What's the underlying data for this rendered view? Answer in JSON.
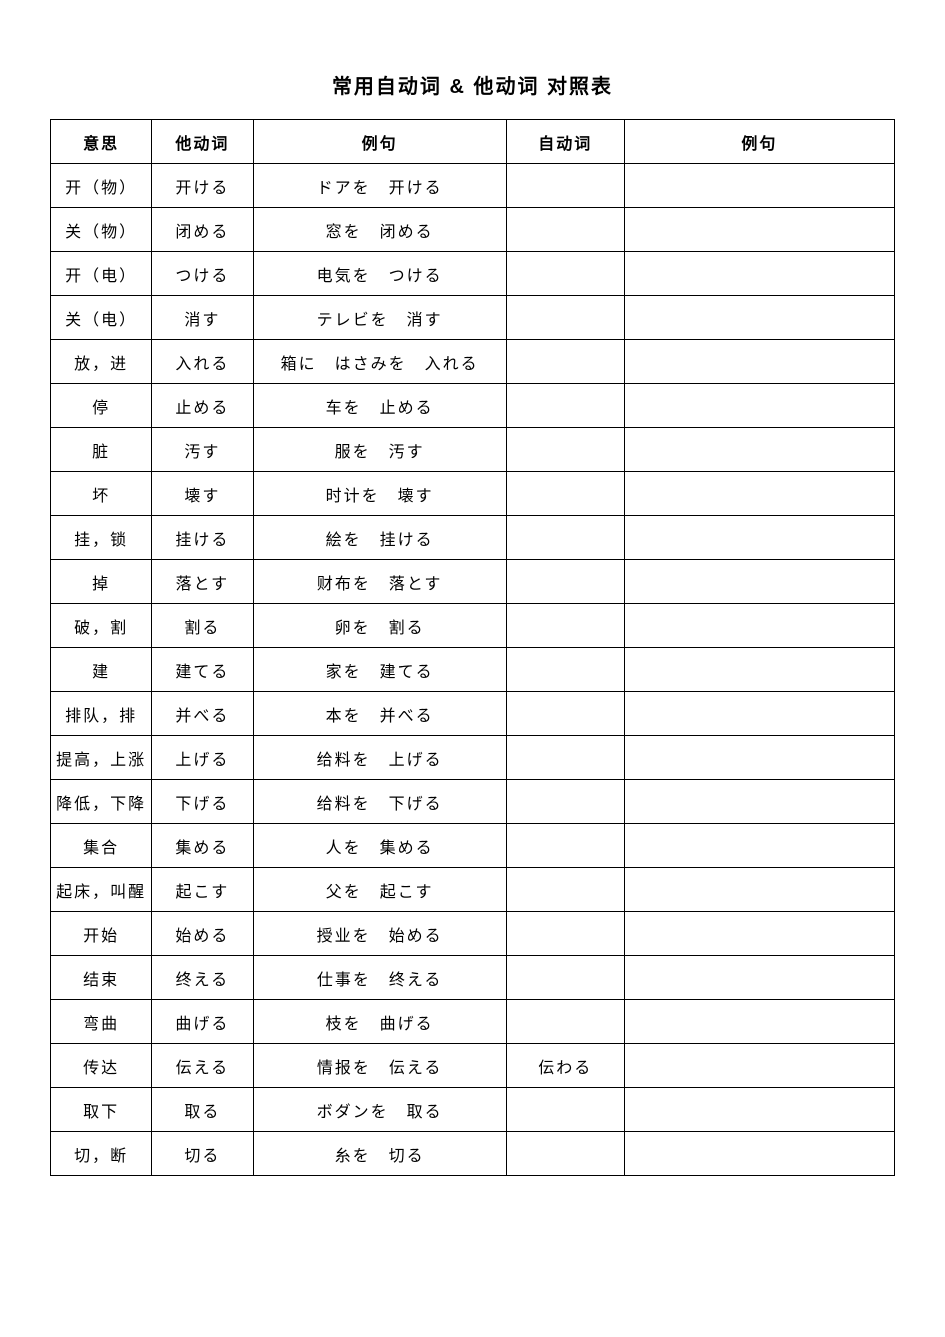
{
  "title": "常用自动词 & 他动词 对照表",
  "columns": [
    "意思",
    "他动词",
    "例句",
    "自动词",
    "例句"
  ],
  "rows": [
    {
      "meaning": "开（物）",
      "tadoshi": "开ける",
      "ex1": "ドアを　开ける",
      "jidoshi": "",
      "ex2": ""
    },
    {
      "meaning": "关（物）",
      "tadoshi": "闭める",
      "ex1": "窓を　闭める",
      "jidoshi": "",
      "ex2": ""
    },
    {
      "meaning": "开（电）",
      "tadoshi": "つける",
      "ex1": "电気を　つける",
      "jidoshi": "",
      "ex2": ""
    },
    {
      "meaning": "关（电）",
      "tadoshi": "消す",
      "ex1": "テレビを　消す",
      "jidoshi": "",
      "ex2": ""
    },
    {
      "meaning": "放，进",
      "tadoshi": "入れる",
      "ex1": "箱に　はさみを　入れる",
      "jidoshi": "",
      "ex2": ""
    },
    {
      "meaning": "停",
      "tadoshi": "止める",
      "ex1": "车を　止める",
      "jidoshi": "",
      "ex2": ""
    },
    {
      "meaning": "脏",
      "tadoshi": "汚す",
      "ex1": "服を　汚す",
      "jidoshi": "",
      "ex2": ""
    },
    {
      "meaning": "坏",
      "tadoshi": "壊す",
      "ex1": "时计を　壊す",
      "jidoshi": "",
      "ex2": ""
    },
    {
      "meaning": "挂，锁",
      "tadoshi": "挂ける",
      "ex1": "絵を　挂ける",
      "jidoshi": "",
      "ex2": ""
    },
    {
      "meaning": "掉",
      "tadoshi": "落とす",
      "ex1": "财布を　落とす",
      "jidoshi": "",
      "ex2": ""
    },
    {
      "meaning": "破，割",
      "tadoshi": "割る",
      "ex1": "卵を　割る",
      "jidoshi": "",
      "ex2": ""
    },
    {
      "meaning": "建",
      "tadoshi": "建てる",
      "ex1": "家を　建てる",
      "jidoshi": "",
      "ex2": ""
    },
    {
      "meaning": "排队，排",
      "tadoshi": "并べる",
      "ex1": "本を　并べる",
      "jidoshi": "",
      "ex2": ""
    },
    {
      "meaning": "提高，上涨",
      "tadoshi": "上げる",
      "ex1": "给料を　上げる",
      "jidoshi": "",
      "ex2": ""
    },
    {
      "meaning": "降低，下降",
      "tadoshi": "下げる",
      "ex1": "给料を　下げる",
      "jidoshi": "",
      "ex2": ""
    },
    {
      "meaning": "集合",
      "tadoshi": "集める",
      "ex1": "人を　集める",
      "jidoshi": "",
      "ex2": ""
    },
    {
      "meaning": "起床，叫醒",
      "tadoshi": "起こす",
      "ex1": "父を　起こす",
      "jidoshi": "",
      "ex2": ""
    },
    {
      "meaning": "开始",
      "tadoshi": "始める",
      "ex1": "授业を　始める",
      "jidoshi": "",
      "ex2": ""
    },
    {
      "meaning": "结束",
      "tadoshi": "终える",
      "ex1": "仕事を　终える",
      "jidoshi": "",
      "ex2": ""
    },
    {
      "meaning": "弯曲",
      "tadoshi": "曲げる",
      "ex1": "枝を　曲げる",
      "jidoshi": "",
      "ex2": ""
    },
    {
      "meaning": "传达",
      "tadoshi": "伝える",
      "ex1": "情报を　伝える",
      "jidoshi": "伝わる",
      "ex2": ""
    },
    {
      "meaning": "取下",
      "tadoshi": "取る",
      "ex1": "ボダンを　取る",
      "jidoshi": "",
      "ex2": ""
    },
    {
      "meaning": "切，断",
      "tadoshi": "切る",
      "ex1": "糸を　切る",
      "jidoshi": "",
      "ex2": ""
    }
  ]
}
